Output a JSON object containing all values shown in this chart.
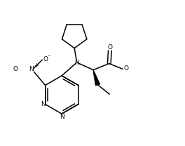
{
  "bg_color": "#ffffff",
  "line_color": "#000000",
  "lw": 1.1,
  "figsize": [
    2.64,
    2.08
  ],
  "dpi": 100,
  "xlim": [
    0.0,
    6.5
  ],
  "ylim": [
    -4.0,
    4.0
  ]
}
